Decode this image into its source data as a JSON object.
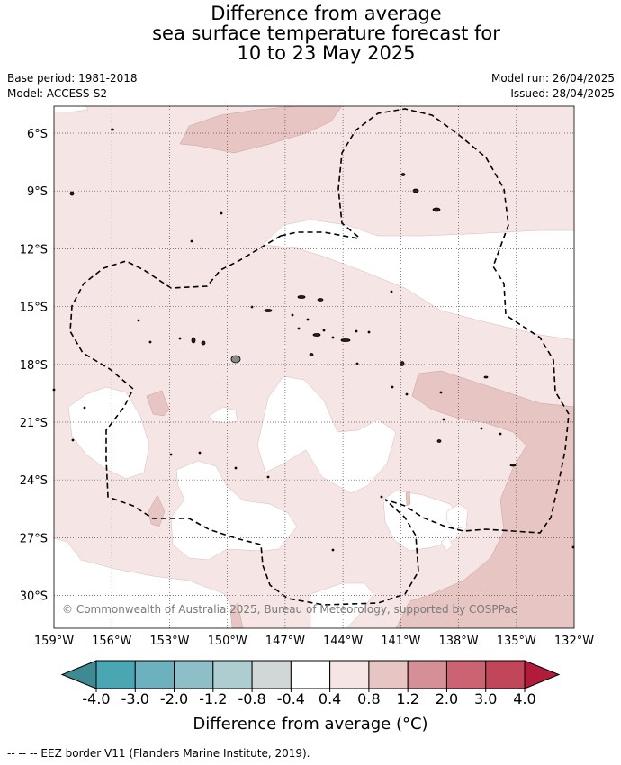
{
  "title": {
    "line1": "Difference from average",
    "line2": "sea surface temperature forecast for",
    "line3": "10 to 23 May 2025"
  },
  "meta": {
    "base_period": "Base period: 1981-2018",
    "model": "Model: ACCESS-S2",
    "model_run": "Model run: 26/04/2025",
    "issued": "Issued: 28/04/2025"
  },
  "map": {
    "lat_labels": [
      "6°S",
      "9°S",
      "12°S",
      "15°S",
      "18°S",
      "21°S",
      "24°S",
      "27°S",
      "30°S"
    ],
    "lat_values": [
      -6,
      -9,
      -12,
      -15,
      -18,
      -21,
      -24,
      -27,
      -30
    ],
    "lon_labels": [
      "159°W",
      "156°W",
      "153°W",
      "150°W",
      "147°W",
      "144°W",
      "141°W",
      "138°W",
      "135°W",
      "132°W"
    ],
    "lon_values": [
      -159,
      -156,
      -153,
      -150,
      -147,
      -144,
      -141,
      -138,
      -135,
      -132
    ],
    "extent": {
      "lon_min": -159,
      "lon_max": -132,
      "lat_max": -4.6,
      "lat_min": -31.7
    },
    "grid": true,
    "copyright": "© Commonwealth of Australia 2025, Bureau of Meteorology, supported by COSPPac"
  },
  "legend": {
    "colors": [
      "#3f8a92",
      "#4ba6b4",
      "#6db1bf",
      "#8ebfc9",
      "#aecdd1",
      "#d1d6d7",
      "#ffffff",
      "#f5e6e5",
      "#e6c5c2",
      "#d58f96",
      "#cb6373",
      "#c2465a",
      "#b01c3a"
    ],
    "tick_labels": [
      "-4.0",
      "-3.0",
      "-2.0",
      "-1.2",
      "-0.8",
      "-0.4",
      "0.4",
      "0.8",
      "1.2",
      "2.0",
      "3.0",
      "4.0"
    ],
    "label": "Difference from average (°C)"
  },
  "footnote": "-- -- -- EEZ border V11 (Flanders Marine Institute, 2019)."
}
